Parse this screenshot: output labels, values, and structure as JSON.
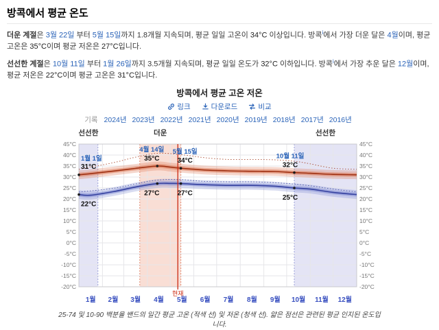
{
  "page": {
    "title": "방콕에서 평균 온도",
    "paragraphs": [
      {
        "name": "hot-season-paragraph",
        "segments": [
          {
            "t": "더운 계절",
            "s": "b"
          },
          {
            "t": "은 ",
            "s": ""
          },
          {
            "t": "3월 22일",
            "s": "link"
          },
          {
            "t": " 부터 ",
            "s": ""
          },
          {
            "t": "5월 15일",
            "s": "link"
          },
          {
            "t": "까지 ",
            "s": ""
          },
          {
            "t": "1.8개월",
            "s": ""
          },
          {
            "t": " 지속되며, 평균 일일 고온이 ",
            "s": ""
          },
          {
            "t": "34°C",
            "s": "temp"
          },
          {
            "t": " 이상입니다. 방콕",
            "s": ""
          },
          {
            "t": "i",
            "s": "info"
          },
          {
            "t": "에서 가장 더운 달은 ",
            "s": ""
          },
          {
            "t": "4월",
            "s": "link"
          },
          {
            "t": "이며, 평균 고온은 ",
            "s": ""
          },
          {
            "t": "35°C",
            "s": "temp"
          },
          {
            "t": "이며 평균 저온은 ",
            "s": ""
          },
          {
            "t": "27°C",
            "s": "temp"
          },
          {
            "t": "입니다.",
            "s": ""
          }
        ]
      },
      {
        "name": "cool-season-paragraph",
        "segments": [
          {
            "t": "선선한 계절",
            "s": "b"
          },
          {
            "t": "은 ",
            "s": ""
          },
          {
            "t": "10월 11일",
            "s": "link"
          },
          {
            "t": " 부터 ",
            "s": ""
          },
          {
            "t": "1월 26일",
            "s": "link"
          },
          {
            "t": "까지 ",
            "s": ""
          },
          {
            "t": "3.5개월",
            "s": ""
          },
          {
            "t": " 지속되며, 평균 일일 온도가 ",
            "s": ""
          },
          {
            "t": "32°C",
            "s": "temp"
          },
          {
            "t": " 이하입니다. 방콕",
            "s": ""
          },
          {
            "t": "i",
            "s": "info"
          },
          {
            "t": "에서 가장 추운 달은 ",
            "s": ""
          },
          {
            "t": "12월",
            "s": "link"
          },
          {
            "t": "이며, 평균 저온은 ",
            "s": ""
          },
          {
            "t": "22°C",
            "s": "temp"
          },
          {
            "t": "이며 평균 고온은 ",
            "s": ""
          },
          {
            "t": "31°C",
            "s": "temp"
          },
          {
            "t": "입니다.",
            "s": ""
          }
        ]
      }
    ],
    "caption": "25-74 및 10-90 백분율 밴드의 일간 평균 고온 (적색 선) 및 저온 (청색 선). 얇은 점선은 관련된 평균 인지된 온도입니다."
  },
  "chart_header": {
    "links": [
      {
        "label": "링크",
        "icon": "link-icon"
      },
      {
        "label": "다운로드",
        "icon": "download-icon"
      },
      {
        "label": "비교",
        "icon": "compare-icon"
      }
    ],
    "history_label": "기록",
    "years": [
      "2024년",
      "2023년",
      "2022년",
      "2021년",
      "2020년",
      "2019년",
      "2018년",
      "2017년",
      "2016년"
    ]
  },
  "chart_data": {
    "type": "line",
    "title": "방콕에서 평균 고온 저온",
    "x_unit": "day_of_year",
    "x_range": [
      0,
      365
    ],
    "ylim": [
      -20,
      45
    ],
    "y_tick_step": 5,
    "y_unit": "°C",
    "grid": true,
    "months": [
      "1월",
      "2월",
      "3월",
      "4월",
      "5월",
      "6월",
      "7월",
      "8월",
      "9월",
      "10월",
      "11월",
      "12월"
    ],
    "month_boundaries": [
      0,
      31,
      59,
      90,
      120,
      151,
      181,
      212,
      243,
      273,
      304,
      334,
      365
    ],
    "seasons": [
      {
        "label": "선선한",
        "kind": "cool",
        "start": 0,
        "end": 25
      },
      {
        "label": "더운",
        "kind": "hot",
        "start": 80,
        "end": 134
      },
      {
        "label": "선선한",
        "kind": "cool",
        "start": 283,
        "end": 365
      }
    ],
    "now": {
      "day": 130,
      "label": "현재"
    },
    "series": [
      {
        "key": "high",
        "name": "평균 고온",
        "band_10_90": 2.0,
        "band_25_75": 0.9,
        "points": [
          [
            0,
            31
          ],
          [
            15,
            31.5
          ],
          [
            45,
            32.7
          ],
          [
            74,
            33.9
          ],
          [
            103,
            35
          ],
          [
            120,
            34.5
          ],
          [
            134,
            34
          ],
          [
            165,
            33.2
          ],
          [
            196,
            32.8
          ],
          [
            227,
            32.6
          ],
          [
            258,
            32.5
          ],
          [
            283,
            32
          ],
          [
            304,
            31.7
          ],
          [
            334,
            31.2
          ],
          [
            365,
            31
          ]
        ],
        "perceived": [
          [
            0,
            33.5
          ],
          [
            45,
            36.5
          ],
          [
            74,
            39
          ],
          [
            103,
            40.8
          ],
          [
            134,
            40.2
          ],
          [
            165,
            38.8
          ],
          [
            196,
            38
          ],
          [
            227,
            38
          ],
          [
            258,
            37.8
          ],
          [
            283,
            37.2
          ],
          [
            304,
            36
          ],
          [
            334,
            34
          ],
          [
            365,
            33.5
          ]
        ]
      },
      {
        "key": "low",
        "name": "평균 저온",
        "band_10_90": 2.0,
        "band_25_75": 0.9,
        "points": [
          [
            0,
            22
          ],
          [
            15,
            21.7
          ],
          [
            45,
            23.3
          ],
          [
            74,
            25.4
          ],
          [
            103,
            27
          ],
          [
            120,
            27.1
          ],
          [
            134,
            27
          ],
          [
            165,
            26.5
          ],
          [
            196,
            26.2
          ],
          [
            227,
            26.2
          ],
          [
            258,
            25.8
          ],
          [
            283,
            25
          ],
          [
            304,
            24.5
          ],
          [
            334,
            23
          ],
          [
            365,
            22
          ]
        ],
        "perceived": [
          [
            0,
            23.2
          ],
          [
            45,
            24.8
          ],
          [
            74,
            26.8
          ],
          [
            103,
            28.6
          ],
          [
            134,
            28.8
          ],
          [
            165,
            28
          ],
          [
            196,
            27.8
          ],
          [
            227,
            27.8
          ],
          [
            258,
            27.4
          ],
          [
            283,
            26.8
          ],
          [
            304,
            26
          ],
          [
            334,
            24.5
          ],
          [
            365,
            23.2
          ]
        ]
      }
    ],
    "annotations": [
      {
        "date": "1월 1일",
        "value": "31°C",
        "day": 0,
        "temp": 31,
        "series": "high",
        "anchor": "start",
        "dx": 3,
        "date_dy": -21,
        "value_dy": -9
      },
      {
        "date": "",
        "value": "22°C",
        "day": 0,
        "temp": 22,
        "series": "low",
        "anchor": "start",
        "dx": 3,
        "date_dy": 0,
        "value_dy": 17
      },
      {
        "date": "4월 14일",
        "value": "35°C",
        "day": 103,
        "temp": 35,
        "series": "high",
        "anchor": "middle",
        "dx": -8,
        "date_dy": -21,
        "value_dy": -8
      },
      {
        "date": "5월 15일",
        "value": "34°C",
        "day": 134,
        "temp": 34,
        "series": "high",
        "anchor": "middle",
        "dx": 6,
        "date_dy": -21,
        "value_dy": -8
      },
      {
        "date": "",
        "value": "27°C",
        "day": 103,
        "temp": 27,
        "series": "low",
        "anchor": "middle",
        "dx": -8,
        "date_dy": 0,
        "value_dy": 17
      },
      {
        "date": "",
        "value": "27°C",
        "day": 134,
        "temp": 27,
        "series": "low",
        "anchor": "middle",
        "dx": 6,
        "date_dy": 0,
        "value_dy": 17
      },
      {
        "date": "10월 11일",
        "value": "32°C",
        "day": 283,
        "temp": 32,
        "series": "high",
        "anchor": "middle",
        "dx": -6,
        "date_dy": -21,
        "value_dy": -8
      },
      {
        "date": "",
        "value": "25°C",
        "day": 283,
        "temp": 25,
        "series": "low",
        "anchor": "middle",
        "dx": -6,
        "date_dy": 0,
        "value_dy": 17
      }
    ],
    "style": {
      "high_line": "#9e2f10",
      "high_band": "#dd7a5a",
      "low_line": "#333f9e",
      "low_band": "#7f8ad2",
      "hot_season_fill": "#f9ded5",
      "hot_season_edge": "#e08a72",
      "cool_season_fill": "#e4e4f5",
      "cool_season_edge": "#9aa0d8",
      "now_color": "#cc2a12",
      "grid": "#e6e6e9",
      "border": "#c9c9ce",
      "axis_text": "#777",
      "month_text": "#3a51c0",
      "season_label": "#333333",
      "dot": "#1a1a1a",
      "annotation_date": "#2a63b8",
      "annotation_value": "#111111",
      "link_blue": "#2a63b8"
    }
  }
}
